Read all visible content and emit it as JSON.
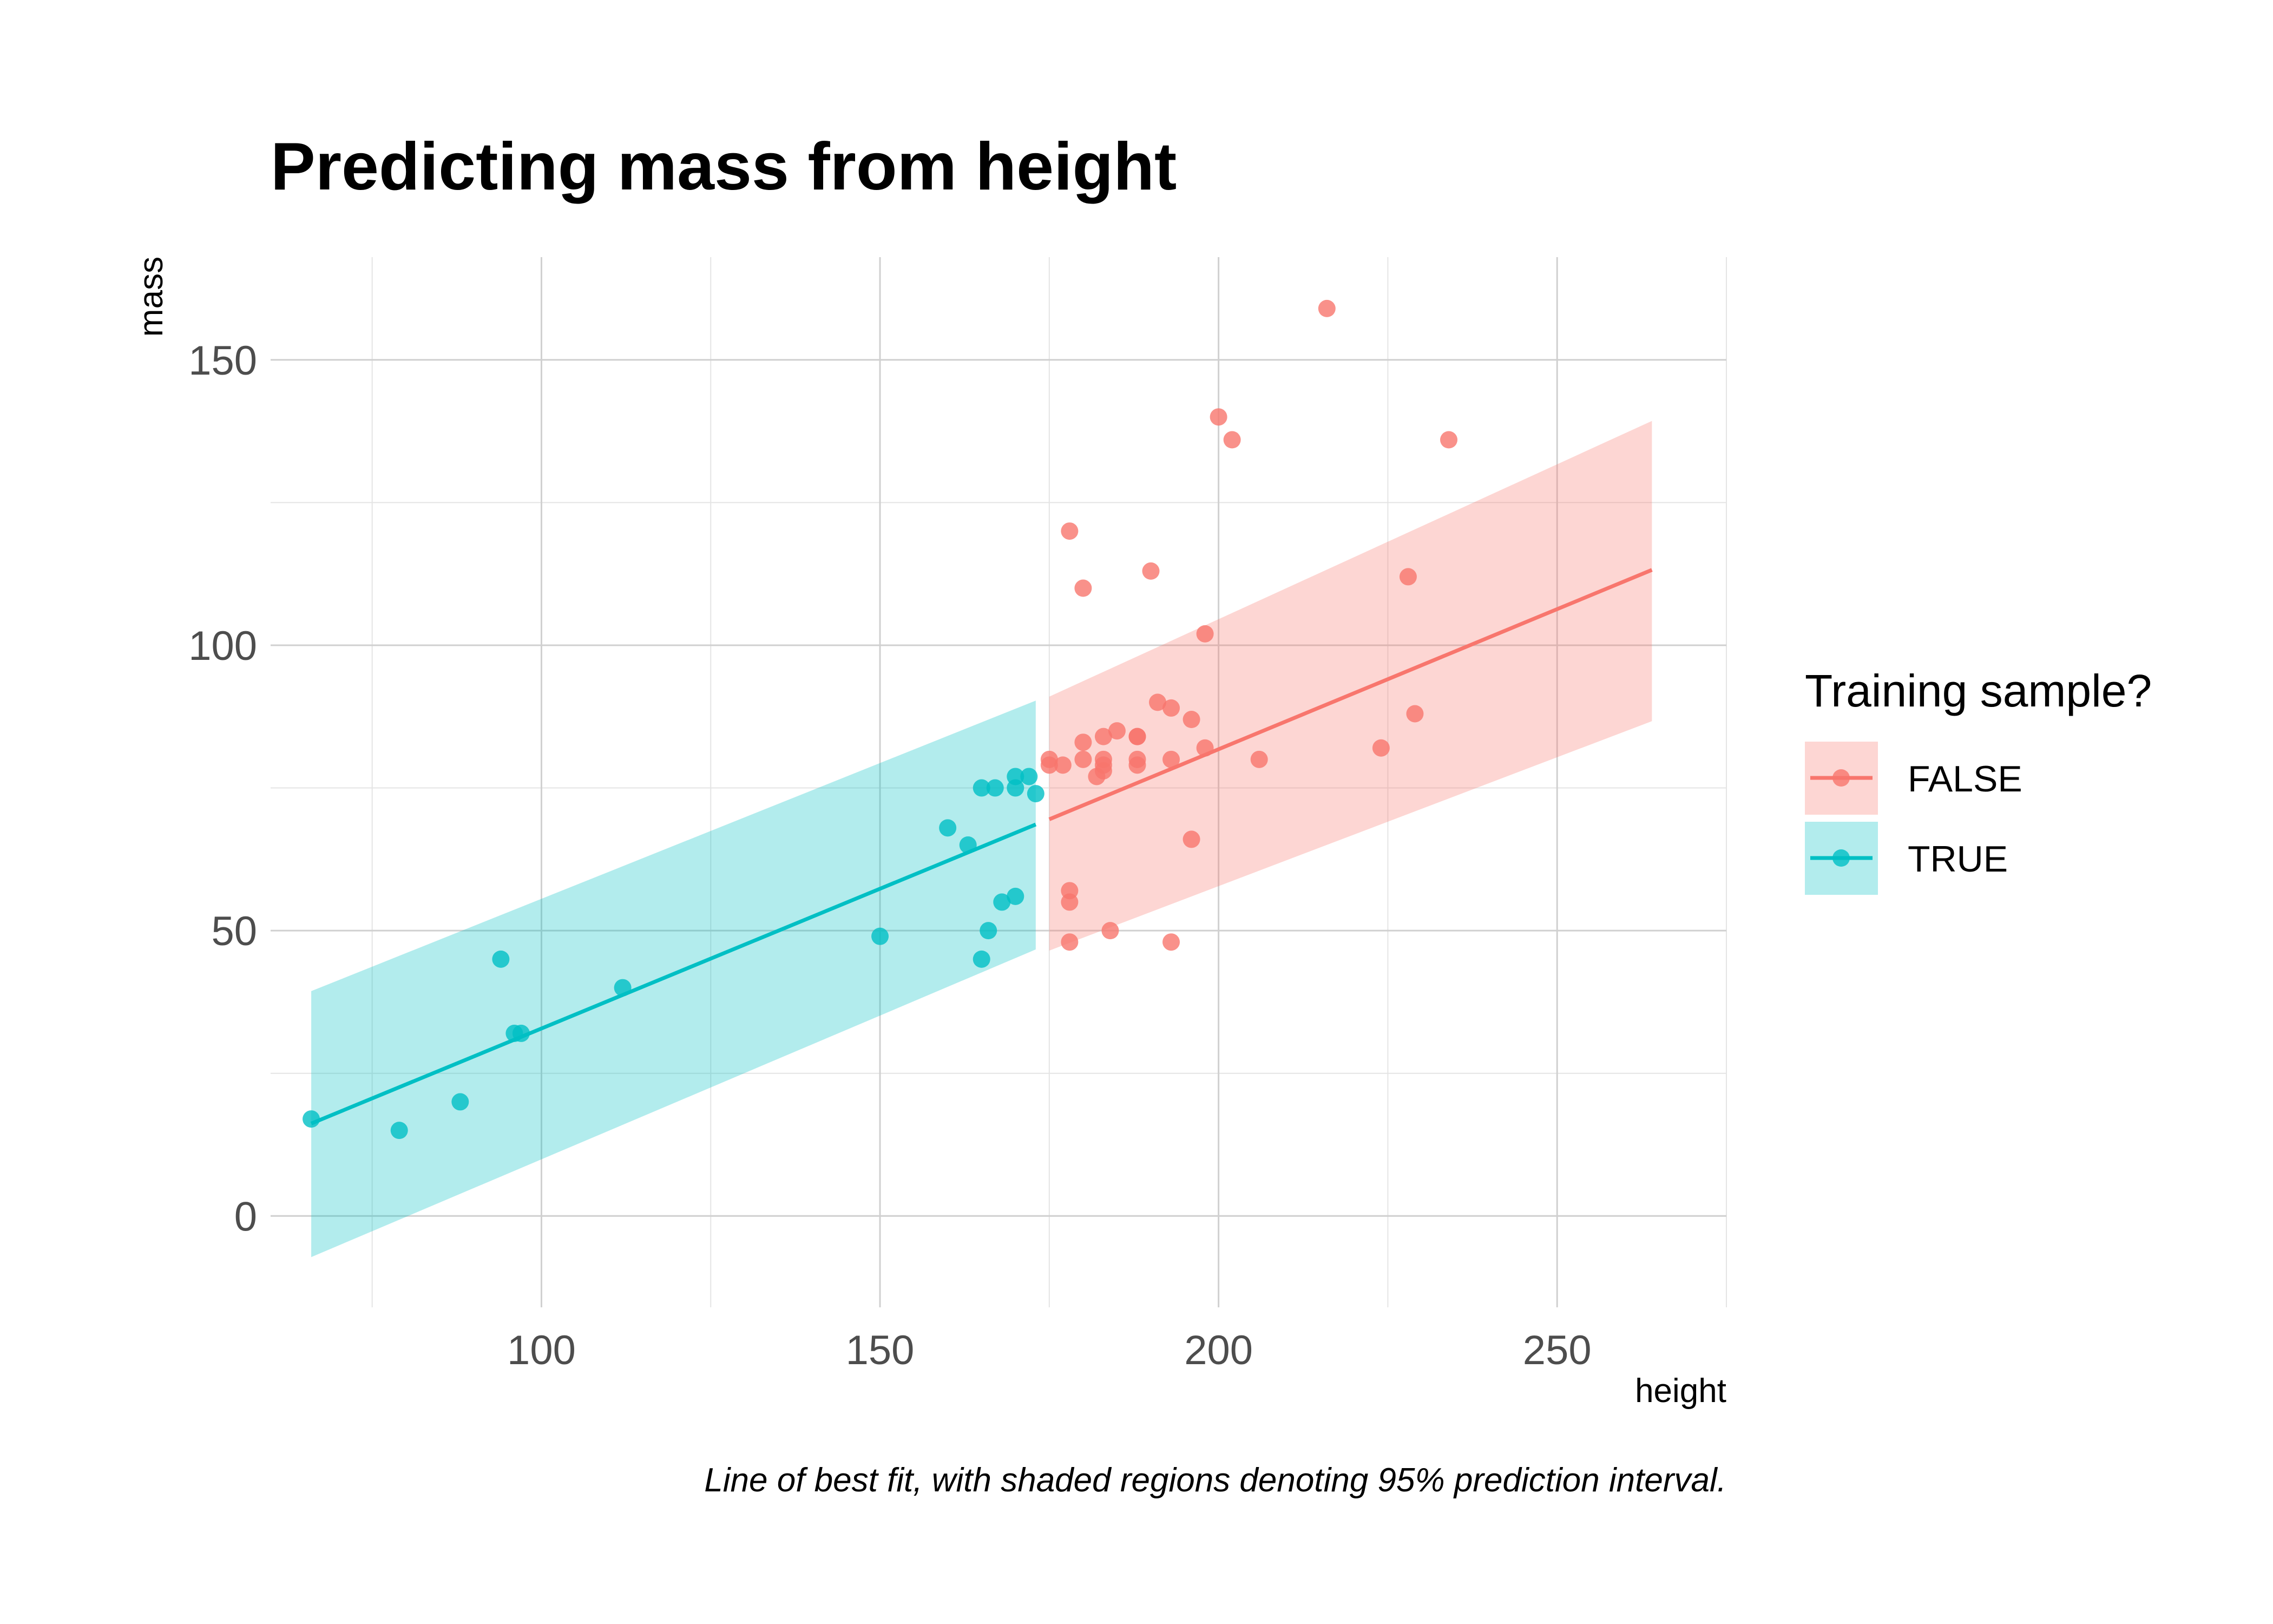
{
  "chart_data": {
    "type": "scatter",
    "title": "Predicting mass from height",
    "xlabel": "height",
    "ylabel": "mass",
    "caption": "Line of best fit, with shaded regions denoting 95% prediction interval.",
    "xlim": [
      60,
      275
    ],
    "ylim": [
      -16,
      168
    ],
    "x_ticks": [
      100,
      150,
      200,
      250
    ],
    "y_ticks": [
      0,
      50,
      100,
      150
    ],
    "grid": true,
    "legend": {
      "title": "Training sample?",
      "position": "right"
    },
    "series": [
      {
        "name": "FALSE",
        "color": "#F8766D",
        "points": [
          [
            216,
            159
          ],
          [
            200,
            140
          ],
          [
            202,
            136
          ],
          [
            234,
            136
          ],
          [
            178,
            120
          ],
          [
            190,
            113
          ],
          [
            228,
            112
          ],
          [
            180,
            110
          ],
          [
            198,
            102
          ],
          [
            191,
            90
          ],
          [
            193,
            89
          ],
          [
            229,
            88
          ],
          [
            196,
            87
          ],
          [
            185,
            85
          ],
          [
            183,
            84
          ],
          [
            188,
            84
          ],
          [
            188,
            84
          ],
          [
            180,
            83
          ],
          [
            198,
            82
          ],
          [
            224,
            82
          ],
          [
            175,
            80
          ],
          [
            180,
            80
          ],
          [
            183,
            80
          ],
          [
            188,
            80
          ],
          [
            193,
            80
          ],
          [
            206,
            80
          ],
          [
            177,
            79
          ],
          [
            183,
            79
          ],
          [
            188,
            79
          ],
          [
            175,
            79
          ],
          [
            183,
            78
          ],
          [
            182,
            77
          ],
          [
            196,
            66
          ],
          [
            178,
            57
          ],
          [
            178,
            55
          ],
          [
            184,
            50
          ],
          [
            178,
            48
          ],
          [
            193,
            48
          ]
        ],
        "fit": {
          "x": [
            175,
            264
          ],
          "y": [
            69.5,
            113.2
          ]
        },
        "interval": {
          "x": [
            175,
            264
          ],
          "lower": [
            46.5,
            86.7
          ],
          "upper": [
            91.0,
            139.3
          ]
        }
      },
      {
        "name": "TRUE",
        "color": "#00BFC4",
        "points": [
          [
            66,
            17
          ],
          [
            79,
            15
          ],
          [
            88,
            20
          ],
          [
            94,
            45
          ],
          [
            96,
            32
          ],
          [
            97,
            32
          ],
          [
            112,
            40
          ],
          [
            150,
            49
          ],
          [
            160,
            68
          ],
          [
            163,
            65
          ],
          [
            165,
            75
          ],
          [
            167,
            75
          ],
          [
            170,
            77
          ],
          [
            172,
            77
          ],
          [
            170,
            75
          ],
          [
            173,
            74
          ],
          [
            170,
            56
          ],
          [
            168,
            55
          ],
          [
            166,
            50
          ],
          [
            165,
            45
          ]
        ],
        "fit": {
          "x": [
            66,
            173
          ],
          "y": [
            16.2,
            68.6
          ]
        },
        "interval": {
          "x": [
            66,
            173
          ],
          "lower": [
            -7.2,
            46.7
          ],
          "upper": [
            39.4,
            90.3
          ]
        }
      }
    ]
  }
}
